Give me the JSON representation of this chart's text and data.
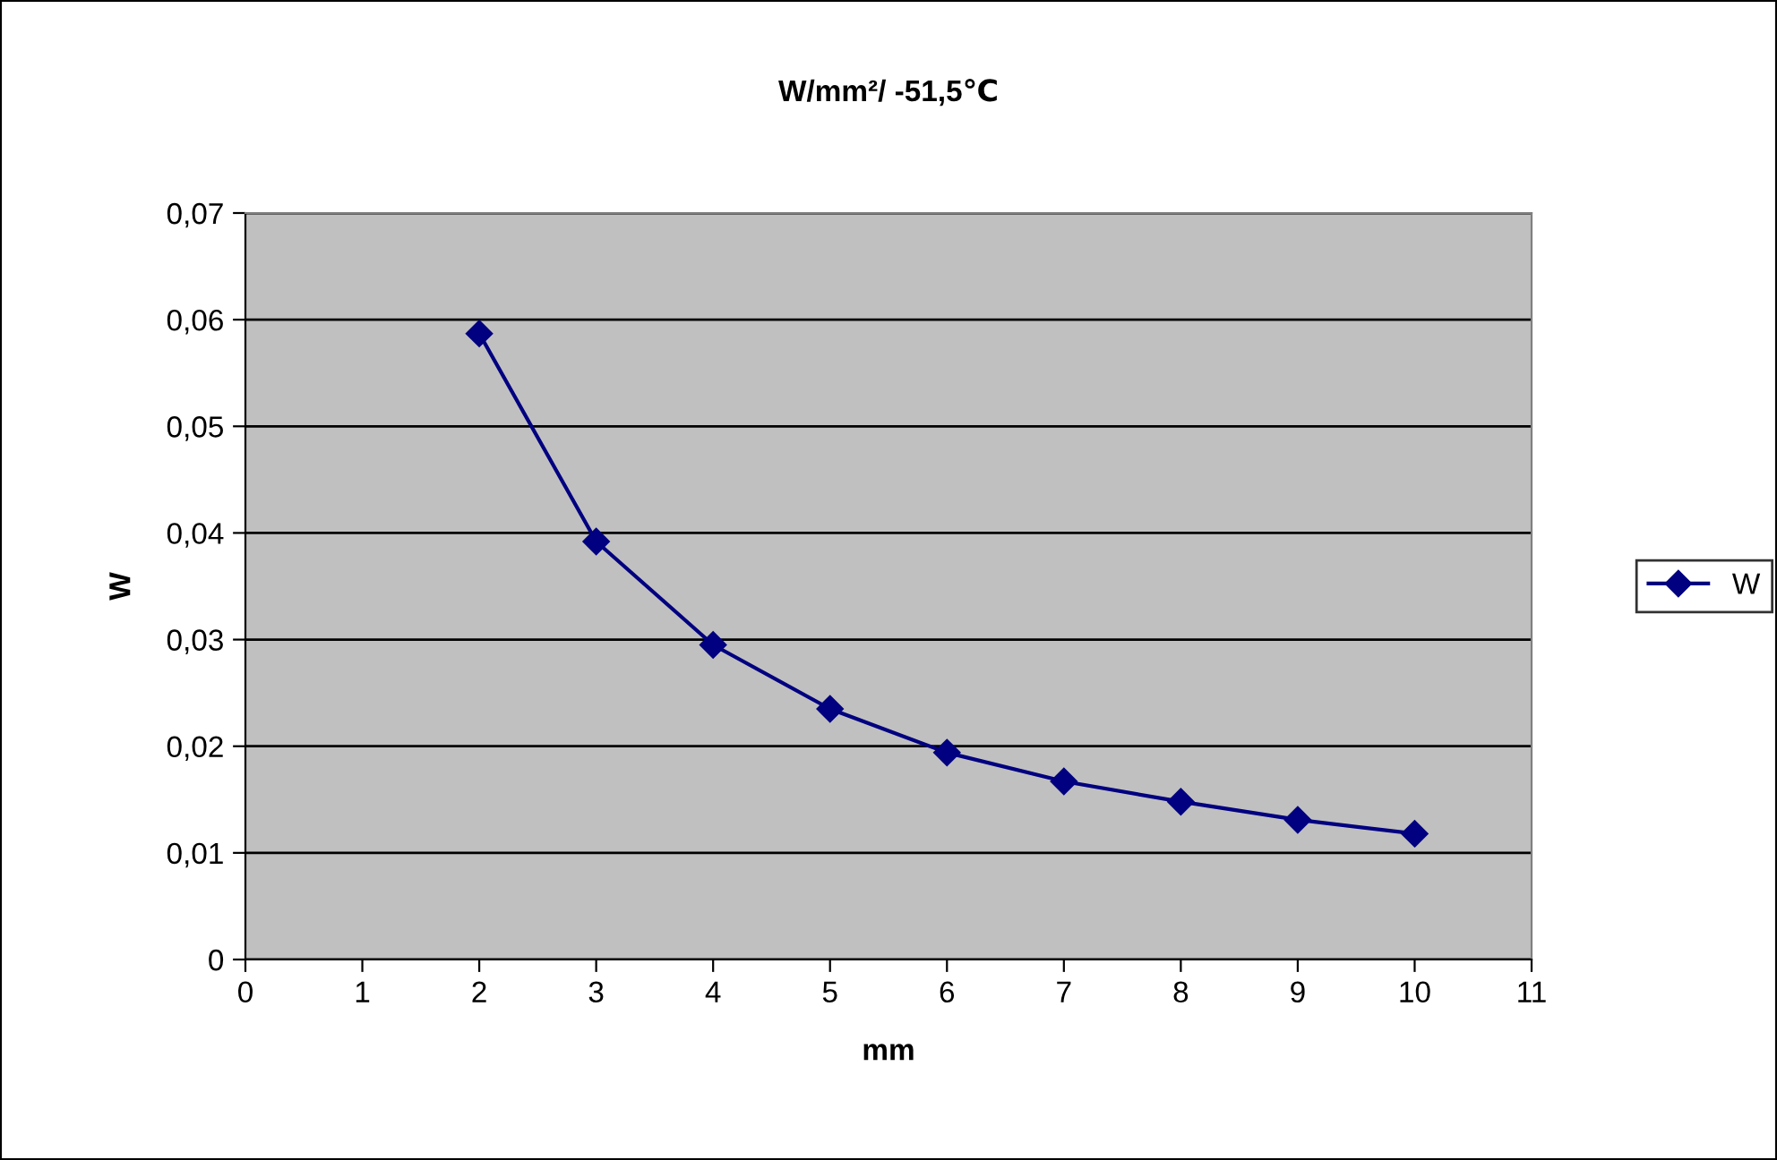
{
  "chart_data": {
    "type": "line",
    "title": "W/mm²/ -51,5℃",
    "xlabel": "mm",
    "ylabel": "W",
    "x": [
      2,
      3,
      4,
      5,
      6,
      7,
      8,
      9,
      10
    ],
    "series": [
      {
        "name": "W",
        "color": "#000080",
        "values": [
          0.0587,
          0.0392,
          0.0295,
          0.0235,
          0.0194,
          0.0167,
          0.0148,
          0.0131,
          0.0118
        ]
      }
    ],
    "xlim": [
      0,
      11
    ],
    "xticks": [
      0,
      1,
      2,
      3,
      4,
      5,
      6,
      7,
      8,
      9,
      10,
      11
    ],
    "ylim": [
      0,
      0.07
    ],
    "yticks": [
      {
        "value": 0,
        "label": "0"
      },
      {
        "value": 0.01,
        "label": "0,01"
      },
      {
        "value": 0.02,
        "label": "0,02"
      },
      {
        "value": 0.03,
        "label": "0,03"
      },
      {
        "value": 0.04,
        "label": "0,04"
      },
      {
        "value": 0.05,
        "label": "0,05"
      },
      {
        "value": 0.06,
        "label": "0,06"
      },
      {
        "value": 0.07,
        "label": "0,07"
      }
    ],
    "grid": "y",
    "legend": "right",
    "marker": "diamond",
    "line_style": "solid"
  }
}
